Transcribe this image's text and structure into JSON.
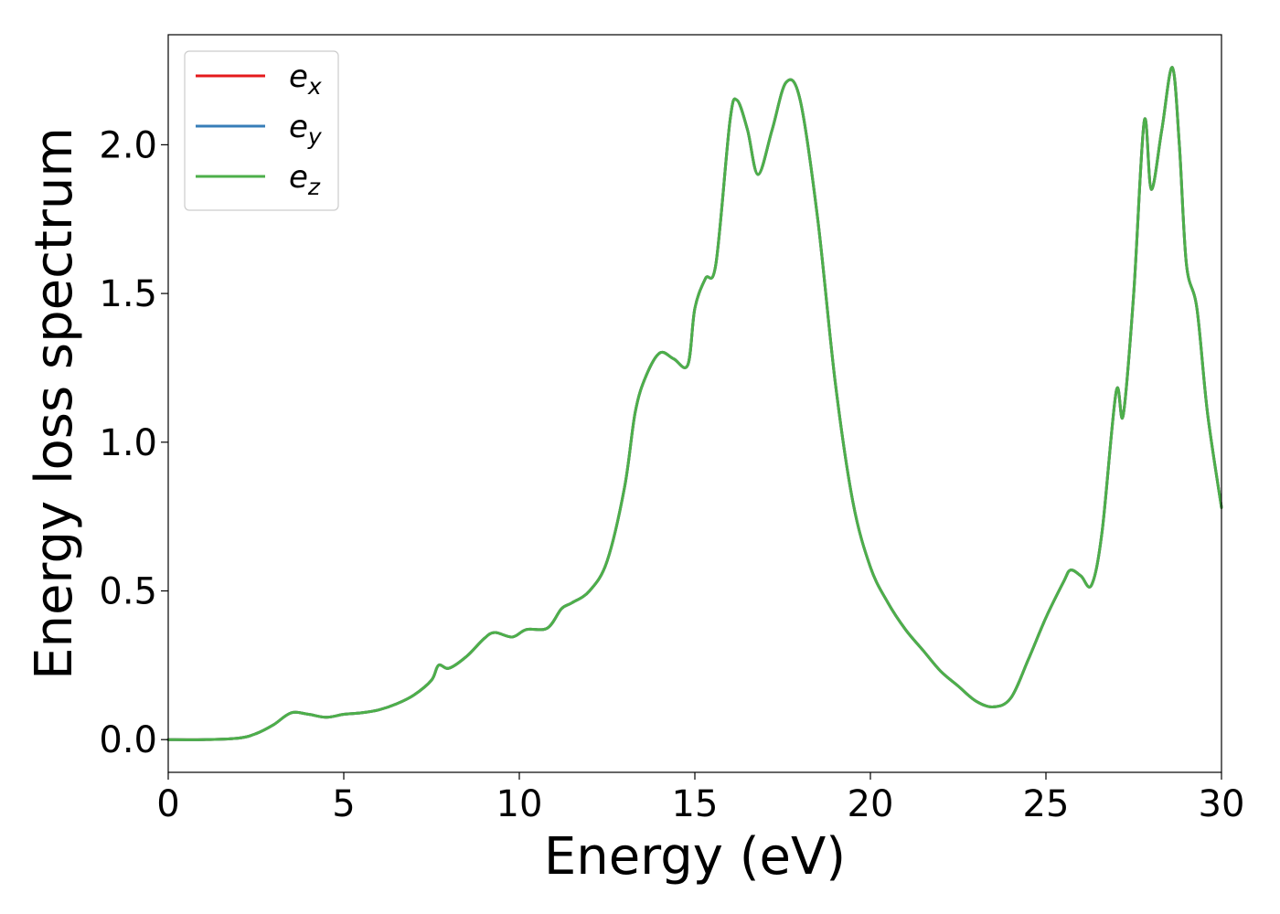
{
  "chart_data": {
    "type": "line",
    "xlabel": "Energy (eV)",
    "ylabel": "Energy loss spectrum",
    "xlim": [
      0,
      30
    ],
    "ylim": [
      -0.11,
      2.37
    ],
    "xticks": [
      0,
      5,
      10,
      15,
      20,
      25,
      30
    ],
    "xtick_labels": [
      "0",
      "5",
      "10",
      "15",
      "20",
      "25",
      "30"
    ],
    "yticks": [
      0.0,
      0.5,
      1.0,
      1.5,
      2.0
    ],
    "ytick_labels": [
      "0.0",
      "0.5",
      "1.0",
      "1.5",
      "2.0"
    ],
    "grid": false,
    "legend_position": "top-left",
    "series": [
      {
        "name": "e",
        "sub": "x",
        "color": "#e41a1c"
      },
      {
        "name": "e",
        "sub": "y",
        "color": "#377eb8"
      },
      {
        "name": "e",
        "sub": "z",
        "color": "#4daf4a"
      }
    ],
    "x": [
      0,
      1,
      2,
      2.5,
      3,
      3.5,
      4,
      4.5,
      5,
      5.5,
      6,
      6.5,
      7,
      7.5,
      7.7,
      8,
      8.5,
      9,
      9.3,
      9.8,
      10.2,
      10.8,
      11.2,
      11.5,
      12,
      12.5,
      13,
      13.3,
      13.6,
      14,
      14.4,
      14.8,
      15,
      15.3,
      15.6,
      16,
      16.2,
      16.5,
      16.8,
      17.2,
      17.6,
      18,
      18.5,
      19,
      19.5,
      20,
      20.5,
      21,
      21.5,
      22,
      22.5,
      23,
      23.5,
      24,
      24.5,
      25,
      25.5,
      25.7,
      26,
      26.3,
      26.6,
      27,
      27.2,
      27.5,
      27.8,
      28,
      28.3,
      28.6,
      28.8,
      29,
      29.3,
      29.6,
      30
    ],
    "values": [
      [
        0.0,
        0.0,
        0.005,
        0.02,
        0.05,
        0.09,
        0.085,
        0.075,
        0.085,
        0.09,
        0.1,
        0.12,
        0.15,
        0.2,
        0.25,
        0.24,
        0.28,
        0.34,
        0.36,
        0.345,
        0.37,
        0.375,
        0.44,
        0.46,
        0.5,
        0.6,
        0.85,
        1.1,
        1.22,
        1.3,
        1.28,
        1.26,
        1.45,
        1.55,
        1.6,
        2.08,
        2.15,
        2.05,
        1.9,
        2.05,
        2.21,
        2.15,
        1.75,
        1.2,
        0.8,
        0.58,
        0.46,
        0.37,
        0.3,
        0.23,
        0.18,
        0.13,
        0.11,
        0.14,
        0.27,
        0.41,
        0.53,
        0.57,
        0.55,
        0.52,
        0.7,
        1.17,
        1.09,
        1.5,
        2.08,
        1.85,
        2.05,
        2.26,
        2.0,
        1.6,
        1.45,
        1.1,
        0.78
      ],
      [
        0.0,
        0.0,
        0.005,
        0.02,
        0.05,
        0.09,
        0.085,
        0.075,
        0.085,
        0.09,
        0.1,
        0.12,
        0.15,
        0.2,
        0.25,
        0.24,
        0.28,
        0.34,
        0.36,
        0.345,
        0.37,
        0.375,
        0.44,
        0.46,
        0.5,
        0.6,
        0.85,
        1.1,
        1.22,
        1.3,
        1.28,
        1.26,
        1.45,
        1.55,
        1.6,
        2.08,
        2.15,
        2.05,
        1.9,
        2.05,
        2.21,
        2.15,
        1.75,
        1.2,
        0.8,
        0.58,
        0.46,
        0.37,
        0.3,
        0.23,
        0.18,
        0.13,
        0.11,
        0.14,
        0.27,
        0.41,
        0.53,
        0.57,
        0.55,
        0.52,
        0.7,
        1.17,
        1.09,
        1.5,
        2.08,
        1.85,
        2.05,
        2.26,
        2.0,
        1.6,
        1.45,
        1.1,
        0.78
      ],
      [
        0.0,
        0.0,
        0.005,
        0.02,
        0.05,
        0.09,
        0.085,
        0.075,
        0.085,
        0.09,
        0.1,
        0.12,
        0.15,
        0.2,
        0.25,
        0.24,
        0.28,
        0.34,
        0.36,
        0.345,
        0.37,
        0.375,
        0.44,
        0.46,
        0.5,
        0.6,
        0.85,
        1.1,
        1.22,
        1.3,
        1.28,
        1.26,
        1.45,
        1.55,
        1.6,
        2.08,
        2.15,
        2.05,
        1.9,
        2.05,
        2.21,
        2.15,
        1.75,
        1.2,
        0.8,
        0.58,
        0.46,
        0.37,
        0.3,
        0.23,
        0.18,
        0.13,
        0.11,
        0.14,
        0.27,
        0.41,
        0.53,
        0.57,
        0.55,
        0.52,
        0.7,
        1.17,
        1.09,
        1.5,
        2.08,
        1.85,
        2.05,
        2.26,
        2.0,
        1.6,
        1.45,
        1.1,
        0.78
      ]
    ]
  }
}
